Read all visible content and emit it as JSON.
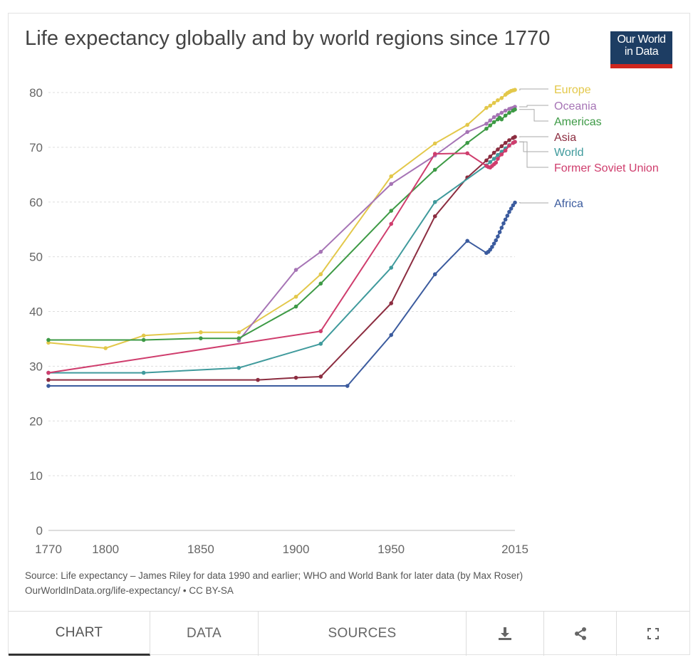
{
  "chart_data": {
    "type": "line",
    "title": "Life expectancy globally and by world regions since 1770",
    "xlabel": "",
    "ylabel": "",
    "xlim": [
      1770,
      2015
    ],
    "ylim": [
      0,
      80
    ],
    "x_ticks": [
      "1770",
      "1800",
      "1850",
      "1900",
      "1950",
      "2015"
    ],
    "y_ticks": [
      "0",
      "10",
      "20",
      "30",
      "40",
      "50",
      "60",
      "70",
      "80"
    ],
    "grid": true,
    "legend": "right",
    "series": [
      {
        "name": "Europe",
        "color": "#e3c84a",
        "points": [
          [
            1770,
            34.3
          ],
          [
            1800,
            33.3
          ],
          [
            1820,
            35.6
          ],
          [
            1850,
            36.2
          ],
          [
            1870,
            36.2
          ],
          [
            1900,
            42.7
          ],
          [
            1913,
            46.8
          ],
          [
            1950,
            64.7
          ],
          [
            1973,
            70.7
          ],
          [
            1990,
            74.1
          ],
          [
            2000,
            77.2
          ],
          [
            2002,
            77.6
          ],
          [
            2004,
            78.1
          ],
          [
            2006,
            78.6
          ],
          [
            2008,
            79.0
          ],
          [
            2010,
            79.6
          ],
          [
            2011,
            79.9
          ],
          [
            2012,
            80.1
          ],
          [
            2013,
            80.3
          ],
          [
            2014,
            80.4
          ],
          [
            2015,
            80.5
          ]
        ]
      },
      {
        "name": "Oceania",
        "color": "#a674b5",
        "points": [
          [
            1870,
            34.7
          ],
          [
            1900,
            47.6
          ],
          [
            1913,
            50.9
          ],
          [
            1950,
            63.3
          ],
          [
            1973,
            68.5
          ],
          [
            1990,
            72.8
          ],
          [
            2000,
            74.3
          ],
          [
            2002,
            74.9
          ],
          [
            2004,
            75.5
          ],
          [
            2006,
            75.9
          ],
          [
            2008,
            76.3
          ],
          [
            2010,
            76.7
          ],
          [
            2012,
            77.0
          ],
          [
            2013,
            77.1
          ],
          [
            2014,
            77.2
          ],
          [
            2015,
            77.4
          ]
        ]
      },
      {
        "name": "Americas",
        "color": "#3d9a45",
        "points": [
          [
            1770,
            34.8
          ],
          [
            1820,
            34.8
          ],
          [
            1850,
            35.1
          ],
          [
            1870,
            35.1
          ],
          [
            1900,
            40.9
          ],
          [
            1913,
            45.1
          ],
          [
            1950,
            58.4
          ],
          [
            1973,
            65.9
          ],
          [
            1990,
            70.8
          ],
          [
            2000,
            73.4
          ],
          [
            2002,
            74.0
          ],
          [
            2004,
            74.6
          ],
          [
            2006,
            75.1
          ],
          [
            2007,
            75.4
          ],
          [
            2008,
            75.1
          ],
          [
            2010,
            75.8
          ],
          [
            2012,
            76.3
          ],
          [
            2014,
            76.7
          ],
          [
            2015,
            76.9
          ]
        ]
      },
      {
        "name": "Asia",
        "color": "#8c2d40",
        "points": [
          [
            1770,
            27.5
          ],
          [
            1880,
            27.5
          ],
          [
            1900,
            27.9
          ],
          [
            1913,
            28.1
          ],
          [
            1950,
            41.5
          ],
          [
            1973,
            57.4
          ],
          [
            1990,
            64.5
          ],
          [
            2000,
            67.6
          ],
          [
            2002,
            68.3
          ],
          [
            2004,
            69.0
          ],
          [
            2006,
            69.6
          ],
          [
            2008,
            70.2
          ],
          [
            2010,
            70.8
          ],
          [
            2012,
            71.3
          ],
          [
            2014,
            71.7
          ],
          [
            2015,
            71.9
          ]
        ]
      },
      {
        "name": "World",
        "color": "#3f9a9c",
        "points": [
          [
            1770,
            28.8
          ],
          [
            1820,
            28.8
          ],
          [
            1870,
            29.7
          ],
          [
            1913,
            34.1
          ],
          [
            1950,
            48.0
          ],
          [
            1973,
            60.0
          ],
          [
            2000,
            66.7
          ],
          [
            2002,
            67.3
          ],
          [
            2004,
            67.9
          ],
          [
            2006,
            68.6
          ],
          [
            2008,
            69.2
          ],
          [
            2010,
            69.8
          ],
          [
            2012,
            70.4
          ],
          [
            2014,
            70.8
          ],
          [
            2015,
            71.0
          ]
        ]
      },
      {
        "name": "Former Soviet Union",
        "color": "#cf3d6d",
        "points": [
          [
            1770,
            28.8
          ],
          [
            1913,
            36.4
          ],
          [
            1950,
            56.0
          ],
          [
            1973,
            68.8
          ],
          [
            1990,
            68.9
          ],
          [
            2000,
            66.6
          ],
          [
            2001,
            66.4
          ],
          [
            2002,
            66.3
          ],
          [
            2003,
            66.6
          ],
          [
            2004,
            66.9
          ],
          [
            2005,
            67.2
          ],
          [
            2006,
            67.9
          ],
          [
            2008,
            68.7
          ],
          [
            2010,
            69.4
          ],
          [
            2012,
            70.3
          ],
          [
            2014,
            70.8
          ],
          [
            2015,
            71.0
          ]
        ]
      },
      {
        "name": "Africa",
        "color": "#3b5b9e",
        "points": [
          [
            1770,
            26.4
          ],
          [
            1927,
            26.4
          ],
          [
            1950,
            35.7
          ],
          [
            1973,
            46.8
          ],
          [
            1990,
            52.9
          ],
          [
            2000,
            50.7
          ],
          [
            2001,
            50.9
          ],
          [
            2002,
            51.3
          ],
          [
            2003,
            51.8
          ],
          [
            2004,
            52.4
          ],
          [
            2005,
            53.0
          ],
          [
            2006,
            53.7
          ],
          [
            2007,
            54.5
          ],
          [
            2008,
            55.3
          ],
          [
            2009,
            56.1
          ],
          [
            2010,
            56.8
          ],
          [
            2011,
            57.5
          ],
          [
            2012,
            58.2
          ],
          [
            2013,
            58.8
          ],
          [
            2014,
            59.4
          ],
          [
            2015,
            59.9
          ]
        ]
      }
    ]
  },
  "logo": {
    "line1": "Our World",
    "line2": "in Data"
  },
  "source": {
    "line1": "Source: Life expectancy – James Riley for data 1990 and earlier; WHO and World Bank for later data (by Max Roser)",
    "line2": "OurWorldInData.org/life-expectancy/ • CC BY-SA"
  },
  "tabs": {
    "chart": "CHART",
    "data": "DATA",
    "sources": "SOURCES",
    "download_icon": "download-icon",
    "share_icon": "share-icon",
    "fullscreen_icon": "fullscreen-icon"
  }
}
